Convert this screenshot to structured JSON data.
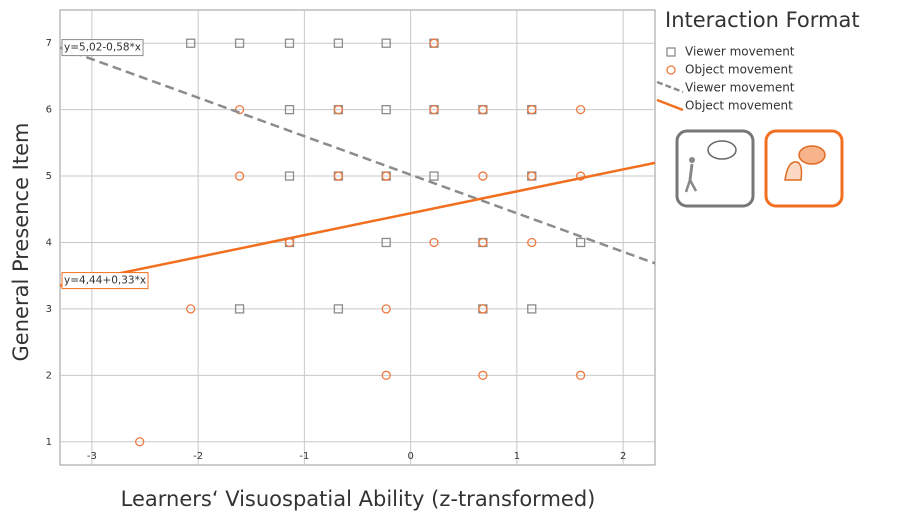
{
  "chart_data": {
    "type": "scatter",
    "xlabel": "Learners‘ Visuospatial Ability (z-transformed)",
    "ylabel": "General Presence Item",
    "xlim": [
      -3.3,
      2.3
    ],
    "ylim": [
      0.65,
      7.5
    ],
    "xticks": [
      -3,
      -2,
      -1,
      0,
      1,
      2
    ],
    "yticks": [
      1,
      2,
      3,
      4,
      5,
      6,
      7
    ],
    "grid": true,
    "legend_title": "Interaction Format",
    "legend": "upper right",
    "series": [
      {
        "name": "Viewer movement",
        "color": "#8c8c8c",
        "marker": "square",
        "x": [
          -2.07,
          -1.61,
          -1.14,
          -0.68,
          -0.23,
          0.22,
          -1.14,
          -0.68,
          -0.23,
          0.22,
          0.68,
          1.14,
          -1.14,
          -0.68,
          -0.23,
          0.22,
          1.14,
          -1.14,
          -0.23,
          0.68,
          1.6,
          -1.61,
          -0.68,
          0.68,
          1.14
        ],
        "values": [
          7,
          7,
          7,
          7,
          7,
          7,
          6,
          6,
          6,
          6,
          6,
          6,
          5,
          5,
          5,
          5,
          5,
          4,
          4,
          4,
          4,
          3,
          3,
          3,
          3
        ]
      },
      {
        "name": "Object movement",
        "color": "#ee7a40",
        "marker": "circle",
        "x": [
          0.22,
          -1.61,
          -0.68,
          0.22,
          0.68,
          1.14,
          1.6,
          -1.61,
          -0.68,
          -0.23,
          0.68,
          1.14,
          1.6,
          -1.14,
          0.22,
          0.68,
          1.14,
          -2.07,
          -0.23,
          0.68,
          -0.23,
          0.68,
          1.6,
          -2.55
        ],
        "values": [
          7,
          6,
          6,
          6,
          6,
          6,
          6,
          5,
          5,
          5,
          5,
          5,
          5,
          4,
          4,
          4,
          4,
          3,
          3,
          3,
          2,
          2,
          2,
          1
        ]
      }
    ],
    "regression": [
      {
        "name": "Viewer movement",
        "color": "#8c8c8c",
        "dash": true,
        "intercept": 5.02,
        "slope": -0.58,
        "label": "y=5,02-0,58*x"
      },
      {
        "name": "Object movement",
        "color": "#f26f1f",
        "dash": false,
        "intercept": 4.44,
        "slope": 0.33,
        "label": "y=4,44+0,33*x"
      }
    ]
  }
}
